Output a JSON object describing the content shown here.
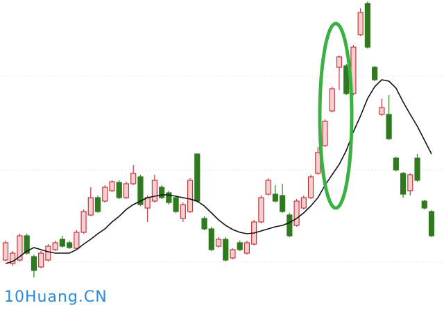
{
  "chart_data": {
    "type": "candlestick",
    "watermark": "10Huang.CN",
    "ylim": [
      0,
      447
    ],
    "up_color": "#c8343c",
    "up_fill": "#f6d0d0",
    "down_color": "#2f7a1f",
    "open": [
      72,
      67,
      72,
      107,
      77,
      62,
      72,
      87,
      102,
      97,
      89,
      112,
      137,
      162,
      157,
      172,
      184,
      162,
      182,
      192,
      147,
      157,
      177,
      169,
      162,
      132,
      142,
      225,
      132,
      117,
      92,
      102,
      75,
      97,
      82,
      95,
      127,
      167,
      167,
      165,
      137,
      122,
      147,
      162,
      197,
      237,
      287,
      350,
      352,
      312,
      397,
      442,
      350,
      282,
      282,
      219,
      197,
      172,
      219,
      157,
      142
    ],
    "close": [
      97,
      82,
      107,
      82,
      57,
      82,
      92,
      97,
      92,
      90,
      112,
      142,
      162,
      142,
      177,
      185,
      162,
      182,
      197,
      152,
      162,
      187,
      162,
      155,
      142,
      152,
      187,
      157,
      117,
      87,
      102,
      72,
      87,
      87,
      97,
      127,
      162,
      187,
      157,
      142,
      107,
      157,
      162,
      192,
      227,
      272,
      319,
      365,
      312,
      379,
      429,
      379,
      332,
      292,
      247,
      202,
      167,
      195,
      187,
      147,
      107
    ],
    "high": [
      100,
      85,
      110,
      110,
      80,
      85,
      95,
      100,
      107,
      100,
      115,
      145,
      177,
      165,
      180,
      187,
      187,
      185,
      209,
      195,
      165,
      195,
      180,
      172,
      165,
      155,
      190,
      225,
      135,
      120,
      105,
      105,
      89,
      100,
      100,
      130,
      165,
      190,
      180,
      182,
      140,
      160,
      165,
      195,
      235,
      275,
      322,
      367,
      355,
      382,
      435,
      445,
      352,
      305,
      310,
      221,
      199,
      197,
      225,
      159,
      144
    ],
    "low": [
      70,
      64,
      70,
      80,
      47,
      60,
      70,
      85,
      90,
      88,
      87,
      110,
      135,
      140,
      155,
      170,
      160,
      160,
      180,
      150,
      127,
      155,
      160,
      152,
      140,
      127,
      140,
      155,
      115,
      85,
      90,
      70,
      73,
      85,
      80,
      93,
      125,
      165,
      155,
      140,
      105,
      120,
      145,
      160,
      195,
      235,
      285,
      317,
      310,
      310,
      395,
      377,
      330,
      280,
      245,
      200,
      162,
      165,
      185,
      145,
      105
    ],
    "ma": {
      "color": "#111111",
      "values": [
        67,
        70,
        77,
        85,
        90,
        87,
        84,
        82,
        82,
        82,
        87,
        95,
        102,
        110,
        117,
        127,
        135,
        145,
        152,
        157,
        162,
        164,
        166,
        166,
        164,
        162,
        160,
        157,
        150,
        140,
        130,
        122,
        116,
        112,
        110,
        111,
        114,
        117,
        120,
        122,
        126,
        132,
        140,
        150,
        162,
        180,
        195,
        210,
        230,
        257,
        280,
        305,
        322,
        332,
        330,
        320,
        300,
        282,
        265,
        245,
        225
      ]
    }
  }
}
